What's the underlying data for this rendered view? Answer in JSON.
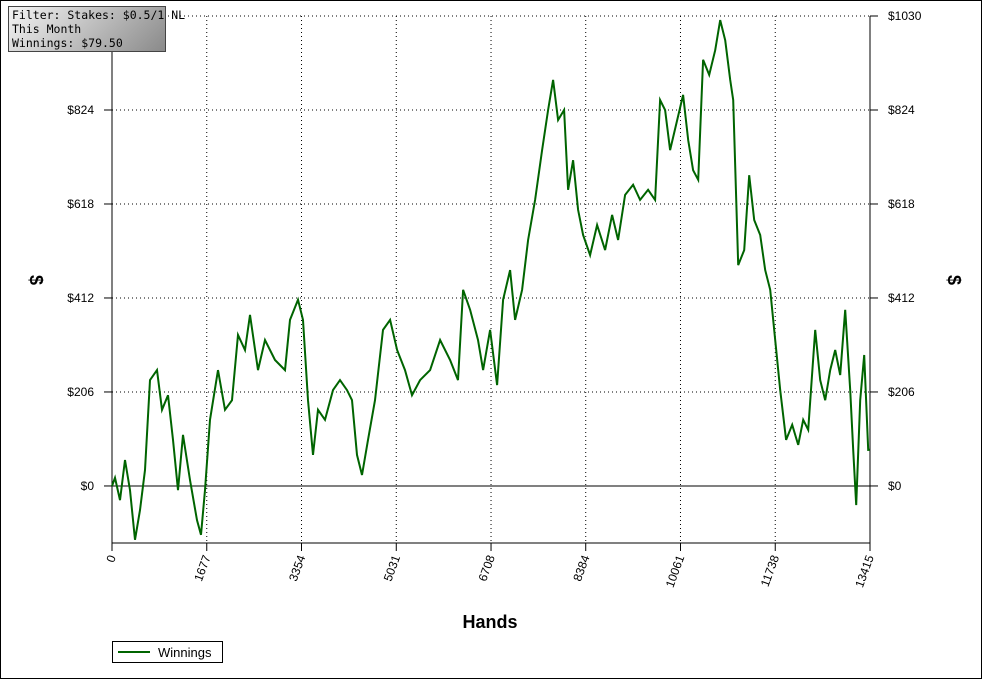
{
  "filter": {
    "lines": [
      "Filter: Stakes: $0.5/1 NL",
      "This Month",
      "Winnings: $79.50"
    ]
  },
  "chart_data": {
    "type": "line",
    "xlabel": "Hands",
    "ylabel": "$",
    "y2label": "$",
    "xlim": [
      0,
      13415
    ],
    "ylim": [
      -125,
      1030
    ],
    "xticks": [
      0,
      1677,
      3354,
      5031,
      6708,
      8384,
      10061,
      11738,
      13415
    ],
    "yticks": [
      {
        "value": 0,
        "label": "$0"
      },
      {
        "value": 206,
        "label": "$206"
      },
      {
        "value": 412,
        "label": "$412"
      },
      {
        "value": 618,
        "label": "$618"
      },
      {
        "value": 824,
        "label": "$824"
      },
      {
        "value": 1030,
        "label": "$1030"
      }
    ],
    "grid": true,
    "legend": "bottom-left",
    "x": [
      0,
      53,
      142,
      230,
      319,
      407,
      495,
      584,
      672,
      796,
      885,
      991,
      1080,
      1168,
      1256,
      1380,
      1504,
      1575,
      1646,
      1734,
      1876,
      2000,
      2124,
      2230,
      2354,
      2442,
      2584,
      2708,
      2885,
      3062,
      3150,
      3292,
      3380,
      3469,
      3557,
      3646,
      3770,
      3911,
      4035,
      4159,
      4248,
      4336,
      4425,
      4531,
      4655,
      4797,
      4921,
      5045,
      5186,
      5310,
      5452,
      5629,
      5806,
      5983,
      6124,
      6213,
      6337,
      6478,
      6567,
      6691,
      6815,
      6921,
      7045,
      7134,
      7258,
      7364,
      7488,
      7612,
      7718,
      7807,
      7895,
      8001,
      8072,
      8160,
      8249,
      8338,
      8461,
      8585,
      8727,
      8851,
      8957,
      9081,
      9222,
      9346,
      9488,
      9612,
      9701,
      9789,
      9878,
      10002,
      10108,
      10197,
      10285,
      10374,
      10462,
      10569,
      10675,
      10763,
      10852,
      10940,
      10994,
      11082,
      11188,
      11277,
      11365,
      11471,
      11560,
      11648,
      11737,
      11825,
      11931,
      12038,
      12144,
      12233,
      12321,
      12445,
      12533,
      12622,
      12710,
      12799,
      12887,
      12976,
      13064,
      13117,
      13170,
      13241,
      13312,
      13383,
      13415
    ],
    "series": [
      {
        "name": "Winnings",
        "color": "#006400",
        "values": [
          0,
          18,
          -31,
          57,
          -9,
          -118,
          -53,
          35,
          232,
          254,
          167,
          199,
          101,
          -9,
          112,
          13,
          -75,
          -107,
          -9,
          145,
          254,
          167,
          188,
          331,
          298,
          375,
          254,
          320,
          276,
          254,
          364,
          408,
          364,
          188,
          68,
          167,
          145,
          210,
          232,
          210,
          188,
          68,
          24,
          101,
          188,
          342,
          364,
          298,
          254,
          199,
          232,
          254,
          320,
          276,
          232,
          430,
          386,
          320,
          254,
          342,
          221,
          408,
          473,
          364,
          430,
          539,
          627,
          736,
          824,
          890,
          802,
          824,
          649,
          714,
          605,
          550,
          506,
          572,
          517,
          594,
          539,
          638,
          660,
          627,
          649,
          627,
          846,
          824,
          736,
          802,
          857,
          758,
          692,
          671,
          934,
          901,
          955,
          1021,
          977,
          890,
          846,
          484,
          517,
          681,
          583,
          550,
          473,
          430,
          320,
          210,
          101,
          134,
          90,
          145,
          123,
          342,
          232,
          188,
          254,
          298,
          243,
          386,
          210,
          79,
          -42,
          188,
          287,
          79,
          79.5
        ]
      }
    ]
  }
}
